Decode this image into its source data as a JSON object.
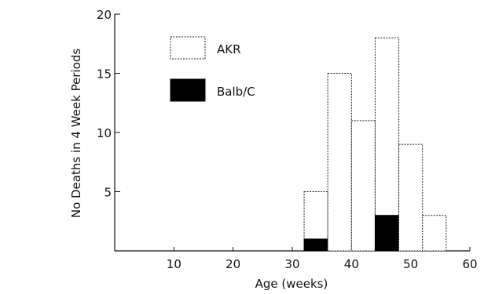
{
  "chart_data": {
    "type": "bar",
    "xlabel": "Age (weeks)",
    "ylabel": "No Deaths in 4 Week Periods",
    "xlim": [
      0,
      60
    ],
    "ylim": [
      0,
      20
    ],
    "x_ticks": [
      "10",
      "20",
      "30",
      "40",
      "50",
      "60"
    ],
    "y_ticks": [
      "5",
      "10",
      "15",
      "20"
    ],
    "x_tick_values": [
      10,
      20,
      30,
      40,
      50,
      60
    ],
    "y_tick_values": [
      5,
      10,
      15,
      20
    ],
    "bin_width": 4,
    "bins": [
      {
        "x_start": 32,
        "x_end": 36,
        "AKR": 5,
        "Balb/C": 1
      },
      {
        "x_start": 36,
        "x_end": 40,
        "AKR": 15,
        "Balb/C": 0
      },
      {
        "x_start": 40,
        "x_end": 44,
        "AKR": 11,
        "Balb/C": 0
      },
      {
        "x_start": 44,
        "x_end": 48,
        "AKR": 18,
        "Balb/C": 3
      },
      {
        "x_start": 48,
        "x_end": 52,
        "AKR": 9,
        "Balb/C": 0
      },
      {
        "x_start": 52,
        "x_end": 56,
        "AKR": 3,
        "Balb/C": 0
      }
    ],
    "series": [
      {
        "name": "AKR",
        "fill": "#ffffff",
        "values": [
          5,
          15,
          11,
          18,
          9,
          3
        ]
      },
      {
        "name": "Balb/C",
        "fill": "#000000",
        "values": [
          1,
          0,
          0,
          3,
          0,
          0
        ]
      }
    ],
    "legend": {
      "placement": "top-left",
      "items": [
        "AKR",
        "Balb/C"
      ]
    },
    "grid": false
  }
}
